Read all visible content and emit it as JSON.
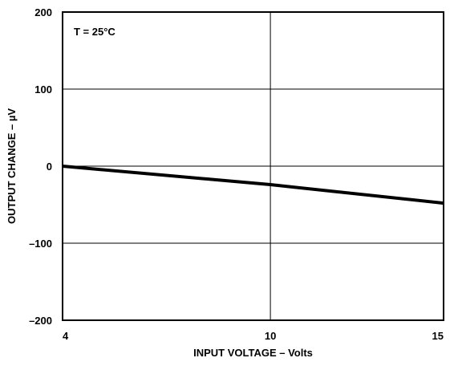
{
  "chart_data": {
    "type": "line",
    "annotation": "T = 25°C",
    "xlabel": "INPUT VOLTAGE – Volts",
    "ylabel": "OUTPUT CHANGE – µV",
    "xlim": [
      4,
      15
    ],
    "ylim": [
      -200,
      200
    ],
    "x_ticks": [
      4,
      10,
      15
    ],
    "x_tick_labels": [
      "4",
      "10",
      "15"
    ],
    "y_ticks": [
      200,
      100,
      0,
      -100,
      -200
    ],
    "y_tick_labels": [
      "200",
      "100",
      "0",
      "–100",
      "–200"
    ],
    "grid": true,
    "series": [
      {
        "x": [
          4,
          10,
          15
        ],
        "values": [
          0,
          -24,
          -48
        ]
      }
    ]
  }
}
